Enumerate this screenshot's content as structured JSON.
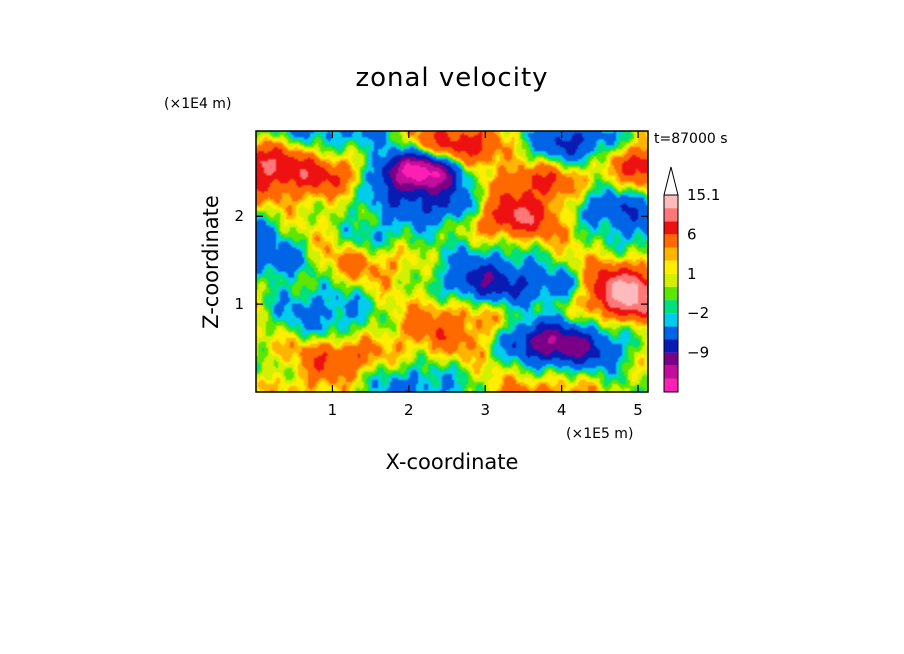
{
  "chart_data": {
    "type": "heatmap",
    "title": "zonal velocity",
    "xlabel": "X-coordinate",
    "ylabel": "Z-coordinate",
    "x_unit": "(×1E5 m)",
    "y_unit": "(×1E4 m)",
    "time_label": "t=87000 s",
    "xlim": [
      0,
      5.13
    ],
    "ylim": [
      0,
      2.97
    ],
    "x_ticks": [
      1,
      2,
      3,
      4,
      5
    ],
    "y_ticks": [
      1,
      2
    ],
    "colorbar": {
      "levels": [
        -15,
        -12,
        -9,
        -6,
        -3,
        -2,
        -1,
        0,
        1,
        2,
        3,
        6,
        9,
        12,
        15.1
      ],
      "labels": [
        "15.1",
        "6",
        "1",
        "−2",
        "−9"
      ],
      "label_values": [
        15.1,
        6,
        1,
        -2,
        -9
      ],
      "colors": [
        "#ff1fb4",
        "#c30d9c",
        "#7b0088",
        "#0a1bb4",
        "#0064e6",
        "#00ccee",
        "#00e07c",
        "#5ce600",
        "#d2f000",
        "#ffee00",
        "#ffb400",
        "#ff6a00",
        "#ee1111",
        "#ff7777",
        "#ffbbbb"
      ],
      "extend_max": true
    },
    "field_features": [
      {
        "x": 2.2,
        "z": 2.5,
        "u": -10
      },
      {
        "x": 2.1,
        "z": 2.55,
        "u": -7
      },
      {
        "x": 1.1,
        "z": 2.45,
        "u": 6
      },
      {
        "x": 2.8,
        "z": 2.75,
        "u": 6
      },
      {
        "x": 2.6,
        "z": 2.1,
        "u": -6
      },
      {
        "x": 1.5,
        "z": 1.75,
        "u": -6
      },
      {
        "x": 0.3,
        "z": 1.5,
        "u": -5
      },
      {
        "x": 3.0,
        "z": 1.2,
        "u": -5
      },
      {
        "x": 4.1,
        "z": 1.2,
        "u": -7
      },
      {
        "x": 4.5,
        "z": 2.1,
        "u": -5
      },
      {
        "x": 3.6,
        "z": 0.6,
        "u": -6
      },
      {
        "x": 4.0,
        "z": 0.5,
        "u": -5
      },
      {
        "x": 4.7,
        "z": 1.2,
        "u": 7
      },
      {
        "x": 5.0,
        "z": 1.0,
        "u": 6
      },
      {
        "x": 3.8,
        "z": 2.45,
        "u": 6
      },
      {
        "x": 1.2,
        "z": 0.4,
        "u": 5
      },
      {
        "x": 0.2,
        "z": 0.25,
        "u": -5
      },
      {
        "x": 0.1,
        "z": 2.6,
        "u": 5
      },
      {
        "x": 3.3,
        "z": 2.0,
        "u": 5
      },
      {
        "x": 5.0,
        "z": 2.6,
        "u": 5
      },
      {
        "x": 1.6,
        "z": 2.95,
        "u": -5
      },
      {
        "x": 4.3,
        "z": 2.9,
        "u": -4
      }
    ]
  }
}
